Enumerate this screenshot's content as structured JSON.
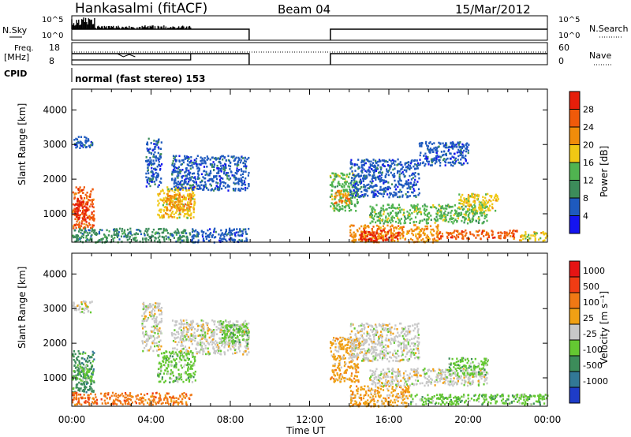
{
  "header": {
    "title": "Hankasalmi (fitACF)",
    "beam": "Beam 04",
    "date": "15/Mar/2012"
  },
  "labels": {
    "nsky": "N.Sky",
    "nsearch": "N.Search",
    "freq_top": "Freq.",
    "freq_unit": "[MHz]",
    "nave": "Nave",
    "cpid": "CPID",
    "cpid_value": "normal (fast stereo) 153",
    "nsky_ticks": [
      "10^5",
      "10^0"
    ],
    "nsearch_ticks": [
      "10^5",
      "10^0"
    ],
    "freq_ticks": [
      "18",
      "8"
    ],
    "nave_ticks": [
      "60",
      "0"
    ]
  },
  "chart_data": [
    {
      "type": "heatmap",
      "name": "power",
      "ylabel": "Slant Range [km]",
      "xlabel": "",
      "xlim": [
        0,
        24
      ],
      "ylim": [
        180,
        4600
      ],
      "y_ticks": [
        1000,
        2000,
        3000,
        4000
      ],
      "colorbar": {
        "label": "Power [dB]",
        "ticks": [
          "4",
          "8",
          "12",
          "16",
          "20",
          "24",
          "28"
        ],
        "colors": [
          "#1414f0",
          "#1e5abe",
          "#3c8c5a",
          "#50b450",
          "#f0c814",
          "#f08c0a",
          "#f05a0a",
          "#e61e0a"
        ]
      },
      "regions": [
        {
          "t0": 0.0,
          "t1": 1.0,
          "r0": 2900,
          "r1": 3250,
          "c": 1
        },
        {
          "t0": 0.0,
          "t1": 1.1,
          "r0": 600,
          "r1": 1800,
          "c": 6
        },
        {
          "t0": 0.1,
          "t1": 0.8,
          "r0": 800,
          "r1": 1500,
          "c": 7
        },
        {
          "t0": 0.0,
          "t1": 6.0,
          "r0": 200,
          "r1": 600,
          "c": 2
        },
        {
          "t0": 3.7,
          "t1": 4.5,
          "r0": 1800,
          "r1": 3200,
          "c": 1
        },
        {
          "t0": 4.3,
          "t1": 6.2,
          "r0": 900,
          "r1": 1800,
          "c": 4
        },
        {
          "t0": 4.7,
          "t1": 6.0,
          "r0": 1100,
          "r1": 1600,
          "c": 5
        },
        {
          "t0": 5.0,
          "t1": 8.9,
          "r0": 1700,
          "r1": 2700,
          "c": 1
        },
        {
          "t0": 6.0,
          "t1": 8.9,
          "r0": 200,
          "r1": 600,
          "c": 1
        },
        {
          "t0": 13.0,
          "t1": 14.4,
          "r0": 1100,
          "r1": 2200,
          "c": 3
        },
        {
          "t0": 13.2,
          "t1": 14.0,
          "r0": 1300,
          "r1": 1700,
          "c": 5
        },
        {
          "t0": 14.0,
          "t1": 17.5,
          "r0": 1500,
          "r1": 2600,
          "c": 1
        },
        {
          "t0": 14.0,
          "t1": 18.5,
          "r0": 200,
          "r1": 700,
          "c": 5
        },
        {
          "t0": 14.5,
          "t1": 16.5,
          "r0": 250,
          "r1": 550,
          "c": 7
        },
        {
          "t0": 15.0,
          "t1": 21.0,
          "r0": 750,
          "r1": 1300,
          "c": 3
        },
        {
          "t0": 19.5,
          "t1": 21.5,
          "r0": 1100,
          "r1": 1600,
          "c": 4
        },
        {
          "t0": 18.5,
          "t1": 22.5,
          "r0": 300,
          "r1": 550,
          "c": 6
        },
        {
          "t0": 22.5,
          "t1": 24.0,
          "r0": 250,
          "r1": 500,
          "c": 4
        },
        {
          "t0": 17.5,
          "t1": 20.0,
          "r0": 2400,
          "r1": 3100,
          "c": 1
        }
      ]
    },
    {
      "type": "heatmap",
      "name": "velocity",
      "ylabel": "Slant Range [km]",
      "xlabel": "Time UT",
      "xlim": [
        0,
        24
      ],
      "ylim": [
        180,
        4600
      ],
      "y_ticks": [
        1000,
        2000,
        3000,
        4000
      ],
      "x_ticks": [
        "00:00",
        "04:00",
        "08:00",
        "12:00",
        "16:00",
        "20:00",
        "00:00"
      ],
      "colorbar": {
        "label": "Velocity [m s⁻¹]",
        "ticks": [
          "1000",
          "500",
          "100",
          "25",
          "-25",
          "-100",
          "-500",
          "-1000"
        ],
        "colors": [
          "#1e3cc8",
          "#327896",
          "#3c8c5a",
          "#64c832",
          "#c8c8c8",
          "#f0a014",
          "#f07814",
          "#f03c14",
          "#e61414"
        ]
      },
      "regions": [
        {
          "t0": 0.0,
          "t1": 1.0,
          "r0": 2900,
          "r1": 3250,
          "c": 4
        },
        {
          "t0": 0.0,
          "t1": 1.1,
          "r0": 600,
          "r1": 1800,
          "c": 2
        },
        {
          "t0": 0.2,
          "t1": 1.0,
          "r0": 900,
          "r1": 1400,
          "c": 3
        },
        {
          "t0": 0.0,
          "t1": 6.0,
          "r0": 250,
          "r1": 600,
          "c": 6
        },
        {
          "t0": 3.5,
          "t1": 4.5,
          "r0": 1800,
          "r1": 3200,
          "c": 4
        },
        {
          "t0": 4.3,
          "t1": 6.2,
          "r0": 900,
          "r1": 1800,
          "c": 3
        },
        {
          "t0": 5.0,
          "t1": 8.9,
          "r0": 1700,
          "r1": 2700,
          "c": 4
        },
        {
          "t0": 7.5,
          "t1": 8.9,
          "r0": 2000,
          "r1": 2600,
          "c": 3
        },
        {
          "t0": 13.0,
          "t1": 14.5,
          "r0": 900,
          "r1": 2200,
          "c": 5
        },
        {
          "t0": 14.0,
          "t1": 17.5,
          "r0": 1500,
          "r1": 2600,
          "c": 4
        },
        {
          "t0": 14.0,
          "t1": 17.0,
          "r0": 200,
          "r1": 800,
          "c": 5
        },
        {
          "t0": 15.0,
          "t1": 21.0,
          "r0": 800,
          "r1": 1300,
          "c": 4
        },
        {
          "t0": 19.0,
          "t1": 21.0,
          "r0": 1100,
          "r1": 1600,
          "c": 3
        },
        {
          "t0": 17.0,
          "t1": 24.0,
          "r0": 250,
          "r1": 550,
          "c": 3
        }
      ]
    }
  ],
  "colors": {
    "frame": "#000000",
    "background": "#ffffff"
  }
}
